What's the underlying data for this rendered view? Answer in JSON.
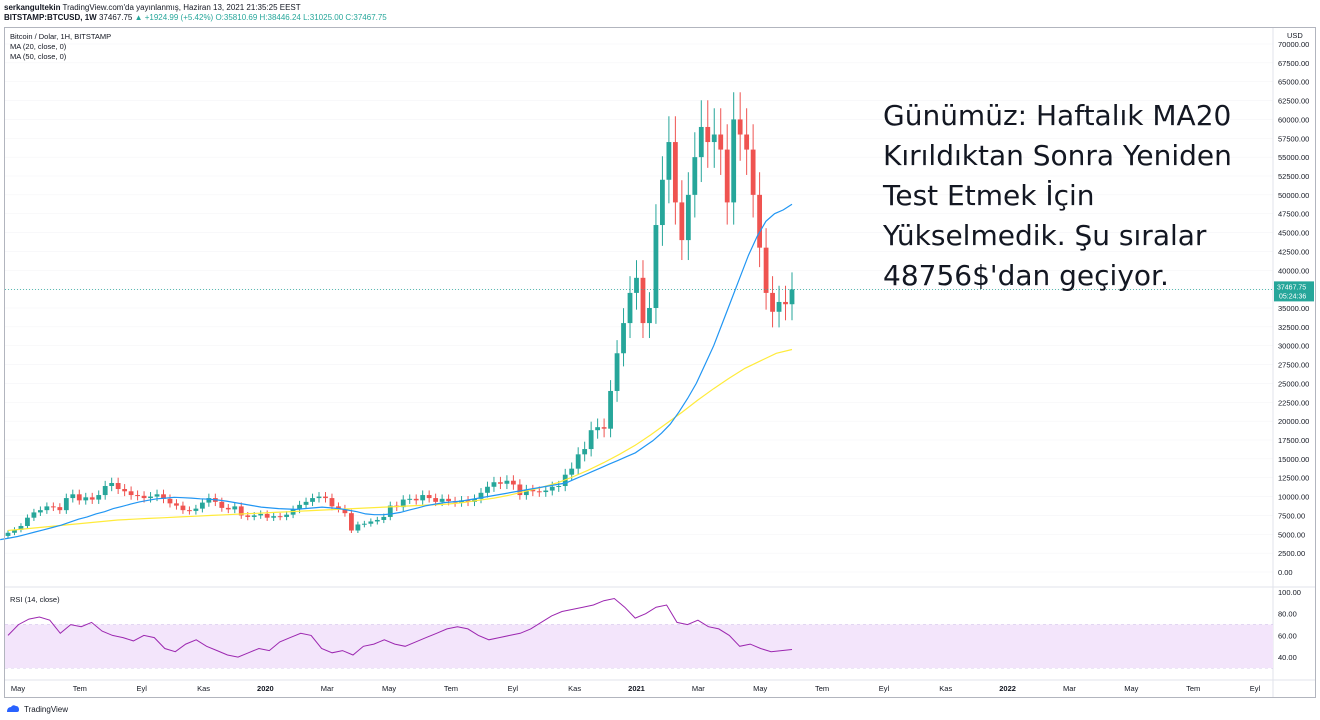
{
  "header": {
    "author": "serkangultekin",
    "published": "TradingView.com'da yayınlanmış, Haziran 13, 2021 21:35:25 EEST",
    "symbol": "BITSTAMP:BTCUSD, 1W",
    "last": "37467.75",
    "change": "▲ +1924.99 (+5.42%)",
    "ohlc_o": "O:35810.69",
    "ohlc_h": "H:38446.24",
    "ohlc_l": "L:31025.00",
    "ohlc_c": "C:37467.75"
  },
  "legend": {
    "title": "Bitcoin / Dolar, 1H, BITSTAMP",
    "ma20": "MA (20, close, 0)",
    "ma50": "MA (50, close, 0)"
  },
  "rsi_label": "RSI (14, close)",
  "annotation": "Günümüz: Haftalık MA20 Kırıldıktan Sonra Yeniden Test Etmek İçin Yükselmedik. Şu sıralar 48756$'dan geçiyor.",
  "footer": {
    "brand": "TradingView"
  },
  "colors": {
    "up": "#26a69a",
    "down": "#ef5350",
    "ma20": "#2196f3",
    "ma50": "#ffeb3b",
    "rsi": "#9c27b0",
    "rsi_band": "#f3e5fb"
  },
  "chart_data": {
    "type": "candlestick",
    "currency_label": "USD",
    "y_ticks": [
      "70000.00",
      "67500.00",
      "65000.00",
      "62500.00",
      "60000.00",
      "57500.00",
      "55000.00",
      "52500.00",
      "50000.00",
      "47500.00",
      "45000.00",
      "42500.00",
      "40000.00",
      "37500.00",
      "35000.00",
      "32500.00",
      "30000.00",
      "27500.00",
      "25000.00",
      "22500.00",
      "20000.00",
      "17500.00",
      "15000.00",
      "12500.00",
      "10000.00",
      "7500.00",
      "5000.00",
      "2500.00",
      "0.00"
    ],
    "ylim": [
      0,
      70000
    ],
    "last_price_tag": "37467.75",
    "countdown_tag": "05:24:36",
    "x_ticks": [
      "May",
      "Tem",
      "Eyl",
      "Kas",
      "2020",
      "Mar",
      "May",
      "Tem",
      "Eyl",
      "Kas",
      "2021",
      "Mar",
      "May",
      "Tem",
      "Eyl",
      "Kas",
      "2022",
      "Mar",
      "May",
      "Tem",
      "Eyl"
    ],
    "x_bold": [
      "2020",
      "2021",
      "2022"
    ],
    "candles_close": [
      5200,
      5600,
      6100,
      7200,
      7900,
      8200,
      8700,
      8600,
      8200,
      9800,
      10300,
      9500,
      9900,
      9600,
      10200,
      11400,
      11800,
      11000,
      10700,
      10200,
      10100,
      9800,
      10000,
      10300,
      9700,
      9100,
      8800,
      8200,
      8100,
      8400,
      9200,
      9800,
      9300,
      8500,
      8300,
      8700,
      7500,
      7300,
      7500,
      7700,
      7200,
      7400,
      7300,
      7600,
      8300,
      8900,
      9300,
      9800,
      10000,
      9800,
      8700,
      8400,
      7800,
      5500,
      6300,
      6400,
      6700,
      6900,
      7300,
      8800,
      8600,
      9600,
      9700,
      9500,
      10200,
      9800,
      9300,
      9700,
      9400,
      9200,
      9500,
      9300,
      9700,
      10500,
      11300,
      11900,
      11700,
      12100,
      11600,
      10200,
      10900,
      10700,
      10600,
      10800,
      11300,
      11400,
      12900,
      13700,
      15600,
      16300,
      18800,
      19200,
      19000,
      24000,
      29000,
      33000,
      37000,
      39000,
      33000,
      35000,
      46000,
      52000,
      57000,
      49000,
      44000,
      50000,
      55000,
      59000,
      57000,
      58000,
      56000,
      49000,
      60000,
      58000,
      56000,
      50000,
      43000,
      37000,
      34500,
      35800,
      35500,
      37467.75
    ],
    "ma20_approx": [
      4300,
      4500,
      4700,
      5000,
      5300,
      5600,
      5900,
      6200,
      6600,
      7000,
      7300,
      7700,
      8000,
      8400,
      8700,
      9000,
      9300,
      9500,
      9700,
      9800,
      9900,
      9850,
      9800,
      9700,
      9650,
      9550,
      9400,
      9200,
      9000,
      8800,
      8600,
      8500,
      8400,
      8350,
      8300,
      8400,
      8500,
      8600,
      8500,
      8400,
      8200,
      8000,
      7700,
      7600,
      7600,
      7700,
      7900,
      8200,
      8500,
      8800,
      9000,
      9200,
      9300,
      9400,
      9600,
      9800,
      10000,
      10200,
      10400,
      10600,
      10800,
      11000,
      11200,
      11400,
      11600,
      11800,
      12300,
      12800,
      13300,
      13800,
      14300,
      14800,
      15300,
      15800,
      16600,
      17400,
      18400,
      19600,
      21200,
      23000,
      25000,
      27500,
      30000,
      33000,
      36000,
      39000,
      42000,
      44500,
      46500,
      47500,
      48000,
      48756
    ],
    "ma50_approx": [
      5500,
      5700,
      5900,
      6100,
      6300,
      6500,
      6700,
      6900,
      7000,
      7100,
      7200,
      7300,
      7400,
      7500,
      7600,
      7700,
      7800,
      7900,
      8000,
      8100,
      8200,
      8300,
      8400,
      8500,
      8600,
      8700,
      8800,
      8900,
      9000,
      9200,
      9500,
      9800,
      10200,
      10700,
      11200,
      11800,
      12600,
      13500,
      14500,
      15600,
      16800,
      18200,
      19700,
      21200,
      22800,
      24300,
      25700,
      27000,
      28000,
      29000,
      29500
    ],
    "rsi_ticks": [
      "100.00",
      "80.00",
      "60.00",
      "40.00"
    ],
    "rsi_band": [
      30,
      70
    ],
    "rsi_values": [
      60,
      70,
      75,
      77,
      74,
      62,
      70,
      68,
      72,
      64,
      60,
      58,
      55,
      60,
      58,
      48,
      45,
      52,
      56,
      50,
      46,
      42,
      40,
      44,
      48,
      46,
      54,
      58,
      62,
      60,
      48,
      44,
      46,
      42,
      50,
      52,
      56,
      52,
      50,
      54,
      58,
      62,
      66,
      68,
      66,
      60,
      56,
      58,
      60,
      62,
      66,
      72,
      78,
      82,
      84,
      86,
      88,
      92,
      94,
      86,
      76,
      80,
      86,
      88,
      72,
      70,
      74,
      68,
      66,
      60,
      50,
      52,
      48,
      45,
      46,
      47
    ]
  }
}
